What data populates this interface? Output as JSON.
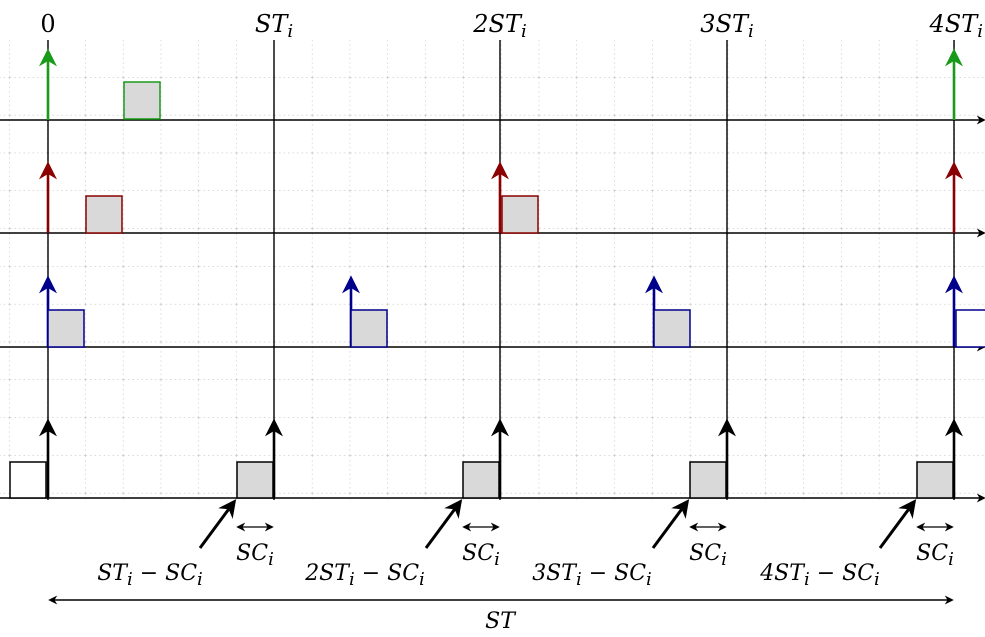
{
  "top_labels": {
    "t0": "0",
    "t1": "ST",
    "t1_sub": "i",
    "t2": "2ST",
    "t2_sub": "i",
    "t3": "3ST",
    "t3_sub": "i",
    "t4": "4ST",
    "t4_sub": "i"
  },
  "bottom_labels": {
    "d1": "ST",
    "d1_sub": "i",
    "d1_minus": " − SC",
    "d1_sub2": "i",
    "d2": "2ST",
    "d2_sub": "i",
    "d2_minus": " − SC",
    "d2_sub2": "i",
    "d3": "3ST",
    "d3_sub": "i",
    "d3_minus": " − SC",
    "d3_sub2": "i",
    "d4": "4ST",
    "d4_sub": "i",
    "d4_minus": " − SC",
    "d4_sub2": "i",
    "sc": "SC",
    "sc_sub": "i",
    "span": "ST"
  },
  "colors": {
    "green": "#1a9a1a",
    "red": "#8b0000",
    "blue": "#00008b",
    "black": "#000000",
    "box_fill": "#d9d9d9",
    "grid": "#9a9a9a"
  }
}
